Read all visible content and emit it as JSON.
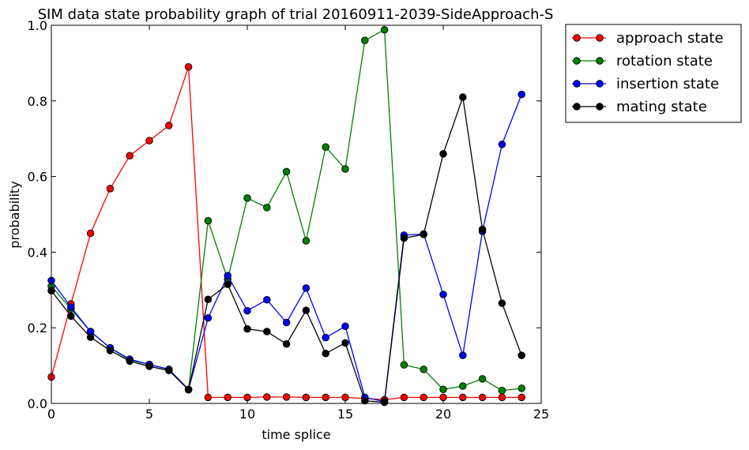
{
  "chart_data": {
    "type": "line",
    "title": "SIM data state probability graph of trial 20160911-2039-SideApproach-S",
    "xlabel": "time splice",
    "ylabel": "probability",
    "xlim": [
      0,
      25
    ],
    "ylim": [
      0.0,
      1.0
    ],
    "x_ticks": [
      0,
      5,
      10,
      15,
      20,
      25
    ],
    "x_tick_labels": [
      "0",
      "5",
      "10",
      "15",
      "20",
      "25"
    ],
    "y_ticks": [
      0.0,
      0.2,
      0.4,
      0.6,
      0.8,
      1.0
    ],
    "y_tick_labels": [
      "0.0",
      "0.2",
      "0.4",
      "0.6",
      "0.8",
      "1.0"
    ],
    "grid": false,
    "legend_position": "outside-right-top",
    "x": [
      0,
      1,
      2,
      3,
      4,
      5,
      6,
      7,
      8,
      9,
      10,
      11,
      12,
      13,
      14,
      15,
      16,
      17,
      18,
      19,
      20,
      21,
      22,
      23,
      24
    ],
    "series": [
      {
        "name": "approach state",
        "color": "#ff0000",
        "values": [
          0.07,
          0.263,
          0.45,
          0.568,
          0.655,
          0.695,
          0.735,
          0.89,
          0.016,
          0.016,
          0.016,
          0.017,
          0.017,
          0.016,
          0.016,
          0.016,
          0.013,
          0.01,
          0.016,
          0.016,
          0.016,
          0.016,
          0.016,
          0.016,
          0.016
        ]
      },
      {
        "name": "rotation state",
        "color": "#008000",
        "values": [
          0.31,
          0.25,
          0.19,
          0.147,
          0.115,
          0.103,
          0.09,
          0.037,
          0.483,
          0.328,
          0.543,
          0.518,
          0.613,
          0.43,
          0.678,
          0.62,
          0.96,
          0.988,
          0.102,
          0.09,
          0.037,
          0.046,
          0.065,
          0.034,
          0.04
        ]
      },
      {
        "name": "insertion state",
        "color": "#0000ff",
        "values": [
          0.325,
          0.255,
          0.19,
          0.147,
          0.117,
          0.103,
          0.09,
          0.037,
          0.226,
          0.338,
          0.245,
          0.274,
          0.214,
          0.305,
          0.174,
          0.204,
          0.016,
          0.005,
          0.445,
          0.448,
          0.288,
          0.127,
          0.455,
          0.685,
          0.817
        ]
      },
      {
        "name": "mating state",
        "color": "#000000",
        "values": [
          0.298,
          0.231,
          0.175,
          0.14,
          0.112,
          0.098,
          0.087,
          0.036,
          0.275,
          0.315,
          0.197,
          0.19,
          0.157,
          0.246,
          0.132,
          0.16,
          0.007,
          0.003,
          0.437,
          0.447,
          0.66,
          0.81,
          0.46,
          0.265,
          0.127
        ]
      }
    ]
  }
}
